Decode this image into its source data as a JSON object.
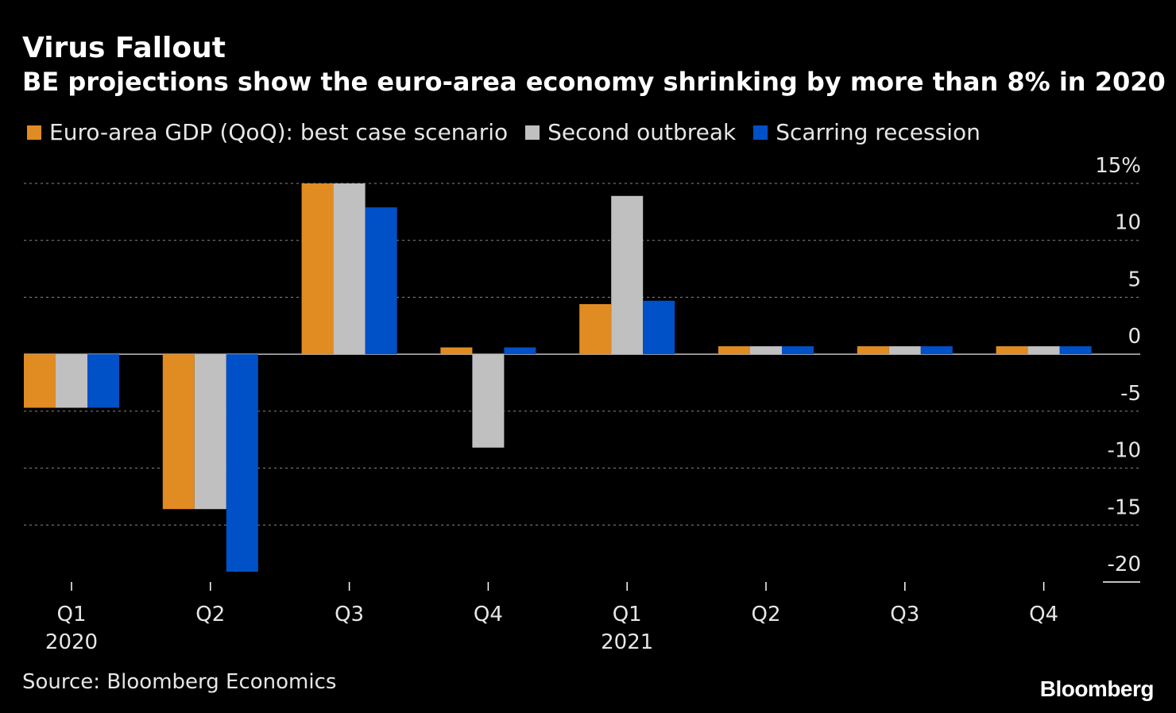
{
  "header": {
    "title": "Virus Fallout",
    "subtitle": "BE projections show the euro-area economy shrinking by more than 8% in 2020"
  },
  "footer": {
    "source": "Source: Bloomberg Economics",
    "brand": "Bloomberg"
  },
  "chart_data": {
    "type": "bar",
    "title": "Virus Fallout",
    "subtitle": "BE projections show the euro-area economy shrinking by more than 8% in 2020",
    "categories": [
      "Q1",
      "Q2",
      "Q3",
      "Q4",
      "Q1",
      "Q2",
      "Q3",
      "Q4"
    ],
    "year_labels": [
      "2020",
      "",
      "",
      "",
      "2021",
      "",
      "",
      ""
    ],
    "series": [
      {
        "name": "Euro-area GDP (QoQ): best case scenario",
        "color": "#e08c23",
        "values": [
          -4.7,
          -13.6,
          15.0,
          0.6,
          4.4,
          0.7,
          0.7,
          0.7
        ]
      },
      {
        "name": "Second outbreak",
        "color": "#c0c0c0",
        "values": [
          -4.7,
          -13.6,
          15.0,
          -8.2,
          13.9,
          0.7,
          0.7,
          0.7
        ]
      },
      {
        "name": "Scarring recession",
        "color": "#0050c8",
        "values": [
          -4.7,
          -19.1,
          12.9,
          0.6,
          4.7,
          0.7,
          0.7,
          0.7
        ]
      }
    ],
    "ylim": [
      -20,
      15
    ],
    "yticks": [
      15,
      10,
      5,
      0,
      -5,
      -10,
      -15,
      -20
    ],
    "ytick_labels": [
      "15%",
      "10",
      "5",
      "0",
      "-5",
      "-10",
      "-15",
      "-20"
    ],
    "grid": true,
    "legend_position": "top-left",
    "yaxis_position": "right"
  }
}
